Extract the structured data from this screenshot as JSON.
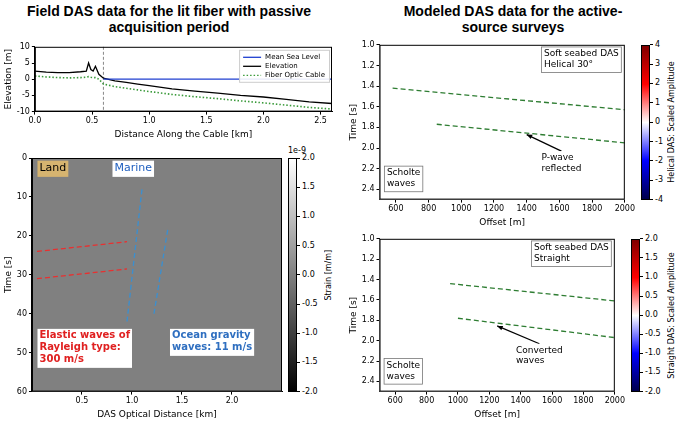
{
  "headers": [
    "Field DAS data for the lit fiber with passive acquisition period",
    "Modeled DAS data for the active-source surveys"
  ],
  "chart_data": [
    {
      "type": "line",
      "x_label": "Distance Along the Cable [km]",
      "y_label": "Elevation [m]",
      "xlim": [
        0,
        2.6
      ],
      "xticks": [
        {
          "value": 0,
          "label": "0.0"
        },
        {
          "value": 0.5,
          "label": "0.5"
        },
        {
          "value": 1,
          "label": "1.0"
        },
        {
          "value": 1.5,
          "label": "1.5"
        },
        {
          "value": 2,
          "label": "2.0"
        },
        {
          "value": 2.5,
          "label": "2.5"
        }
      ],
      "ylim": [
        -10,
        10
      ],
      "yticks": [
        -10,
        -5,
        0,
        5,
        10
      ],
      "grid": false,
      "legend": "upper right",
      "vlines": [
        0.6
      ],
      "series": [
        {
          "name": "Mean Sea Level",
          "color": "#1f3fd0",
          "line_style": "solid",
          "x": [
            0.6,
            2.6
          ],
          "values": [
            0,
            0
          ]
        },
        {
          "name": "Elevation",
          "color": "#000000",
          "line_style": "solid",
          "x": [
            0,
            0.1,
            0.2,
            0.3,
            0.4,
            0.45,
            0.47,
            0.49,
            0.51,
            0.53,
            0.56,
            0.6,
            0.7,
            0.8,
            0.9,
            1.0,
            1.2,
            1.4,
            1.6,
            1.8,
            2.0,
            2.2,
            2.4,
            2.6
          ],
          "values": [
            2.5,
            2.2,
            2,
            2,
            2.3,
            2.5,
            5,
            3,
            2.5,
            4,
            1.5,
            0.3,
            -0.5,
            -1,
            -1.5,
            -2,
            -3,
            -3.7,
            -4.3,
            -5,
            -5.5,
            -6.2,
            -7,
            -7.5
          ]
        },
        {
          "name": "Fiber Optic Cable",
          "color": "#3a9a3a",
          "line_style": "dotted",
          "x": [
            0,
            0.1,
            0.2,
            0.3,
            0.4,
            0.45,
            0.47,
            0.49,
            0.51,
            0.53,
            0.56,
            0.6,
            0.7,
            0.8,
            0.9,
            1.0,
            1.2,
            1.4,
            1.6,
            1.8,
            2.0,
            2.2,
            2.4,
            2.6
          ],
          "values": [
            1,
            0.7,
            0.5,
            0.4,
            0.5,
            0.6,
            0.8,
            0.6,
            0.5,
            0.5,
            0,
            -1.5,
            -2.3,
            -2.8,
            -3.3,
            -3.8,
            -4.7,
            -5.4,
            -6,
            -6.7,
            -7.3,
            -8,
            -8.7,
            -9.2
          ]
        }
      ]
    },
    {
      "type": "heatmap",
      "x_label": "DAS Optical Distance [km]",
      "y_label": "Time [s]",
      "xlim": [
        0,
        2.5
      ],
      "xticks": [
        {
          "value": 0.5,
          "label": "0.5"
        },
        {
          "value": 1,
          "label": "1.0"
        },
        {
          "value": 1.5,
          "label": "1.5"
        },
        {
          "value": 2,
          "label": "2.0"
        }
      ],
      "ylim": [
        60,
        0
      ],
      "yticks": [
        0,
        10,
        20,
        30,
        40,
        50,
        60
      ],
      "grid": false,
      "colorbar": {
        "label": "Strain [m/m]",
        "range": [
          -2e-09,
          2e-09
        ],
        "offset_label": "1e-9",
        "colors": [
          "#000000",
          "#ffffff"
        ],
        "ticks": [
          {
            "value": -2e-09,
            "label": "-2.0"
          },
          {
            "value": -1.5e-09,
            "label": "-1.5"
          },
          {
            "value": -1e-09,
            "label": "-1.0"
          },
          {
            "value": -5e-10,
            "label": "-0.5"
          },
          {
            "value": 0,
            "label": "0.0"
          },
          {
            "value": 5e-10,
            "label": "0.5"
          },
          {
            "value": 1e-09,
            "label": "1.0"
          },
          {
            "value": 1.5e-09,
            "label": "1.5"
          },
          {
            "value": 2e-09,
            "label": "2.0"
          }
        ]
      },
      "annotations": [
        "Land",
        "Marine",
        "Elastic waves of Rayleigh type: 300 m/s",
        "Ocean gravity waves: 11 m/s"
      ],
      "series": [
        {
          "color": "#e83030",
          "line_style": "dashed",
          "x": [
            0.05,
            0.95
          ],
          "values": [
            24,
            21.5
          ]
        },
        {
          "color": "#e83030",
          "line_style": "dashed",
          "x": [
            0.05,
            0.95
          ],
          "values": [
            31,
            28.5
          ]
        },
        {
          "color": "#3a8fd0",
          "line_style": "dashed",
          "x": [
            0.95,
            1.1
          ],
          "values": [
            42,
            8
          ]
        },
        {
          "color": "#3a8fd0",
          "line_style": "dashed",
          "x": [
            1.22,
            1.36
          ],
          "values": [
            40,
            18
          ]
        }
      ]
    },
    {
      "type": "heatmap",
      "x_label": "Offset [m]",
      "y_label": "Time [s]",
      "xlim": [
        500,
        2000
      ],
      "xticks": [
        600,
        800,
        1000,
        1200,
        1400,
        1600,
        1800,
        2000
      ],
      "ylim": [
        2.5,
        1.0
      ],
      "yticks": [
        {
          "value": 1.0,
          "label": "1.0"
        },
        {
          "value": 1.2,
          "label": "1.2"
        },
        {
          "value": 1.4,
          "label": "1.4"
        },
        {
          "value": 1.6,
          "label": "1.6"
        },
        {
          "value": 1.8,
          "label": "1.8"
        },
        {
          "value": 2.0,
          "label": "2.0"
        },
        {
          "value": 2.2,
          "label": "2.2"
        },
        {
          "value": 2.4,
          "label": "2.4"
        }
      ],
      "grid": false,
      "colorbar": {
        "label": "Helical DAS: Scaled Amplitude",
        "range": [
          -4,
          4
        ],
        "colors": [
          "#00004c",
          "#0000ff",
          "#ffffff",
          "#ff0000",
          "#800000"
        ],
        "ticks": [
          -4,
          -3,
          -2,
          -1,
          0,
          1,
          2,
          3,
          4
        ]
      },
      "annotations": [
        "Soft seabed DAS Helical 30°",
        "P-wave reflected",
        "Scholte waves"
      ],
      "series": [
        {
          "color": "#2e7d32",
          "line_style": "dashed",
          "x": [
            580,
            2000
          ],
          "values": [
            1.42,
            1.63
          ]
        },
        {
          "color": "#2e7d32",
          "line_style": "dashed",
          "x": [
            850,
            2000
          ],
          "values": [
            1.77,
            1.95
          ]
        }
      ]
    },
    {
      "type": "heatmap",
      "x_label": "Offset [m]",
      "y_label": "Time [s]",
      "xlim": [
        500,
        2000
      ],
      "xticks": [
        600,
        800,
        1000,
        1200,
        1400,
        1600,
        1800,
        2000
      ],
      "ylim": [
        2.5,
        1.0
      ],
      "yticks": [
        {
          "value": 1.0,
          "label": "1.0"
        },
        {
          "value": 1.2,
          "label": "1.2"
        },
        {
          "value": 1.4,
          "label": "1.4"
        },
        {
          "value": 1.6,
          "label": "1.6"
        },
        {
          "value": 1.8,
          "label": "1.8"
        },
        {
          "value": 2.0,
          "label": "2.0"
        },
        {
          "value": 2.2,
          "label": "2.2"
        },
        {
          "value": 2.4,
          "label": "2.4"
        }
      ],
      "grid": false,
      "colorbar": {
        "label": "Straight DAS: Scaled Amplitude",
        "range": [
          -2,
          2
        ],
        "colors": [
          "#00004c",
          "#0000ff",
          "#ffffff",
          "#ff0000",
          "#800000"
        ],
        "ticks": [
          {
            "value": -2,
            "label": "-2.0"
          },
          {
            "value": -1.5,
            "label": "-1.5"
          },
          {
            "value": -1,
            "label": "-1.0"
          },
          {
            "value": -0.5,
            "label": "-0.5"
          },
          {
            "value": 0,
            "label": "0.0"
          },
          {
            "value": 0.5,
            "label": "0.5"
          },
          {
            "value": 1,
            "label": "1.0"
          },
          {
            "value": 1.5,
            "label": "1.5"
          },
          {
            "value": 2,
            "label": "2.0"
          }
        ]
      },
      "annotations": [
        "Soft seabed DAS Straight",
        "Converted waves",
        "Scholte waves"
      ],
      "series": [
        {
          "color": "#2e7d32",
          "line_style": "dashed",
          "x": [
            950,
            2000
          ],
          "values": [
            1.44,
            1.61
          ]
        },
        {
          "color": "#2e7d32",
          "line_style": "dashed",
          "x": [
            1000,
            2000
          ],
          "values": [
            1.78,
            1.97
          ]
        }
      ]
    }
  ]
}
